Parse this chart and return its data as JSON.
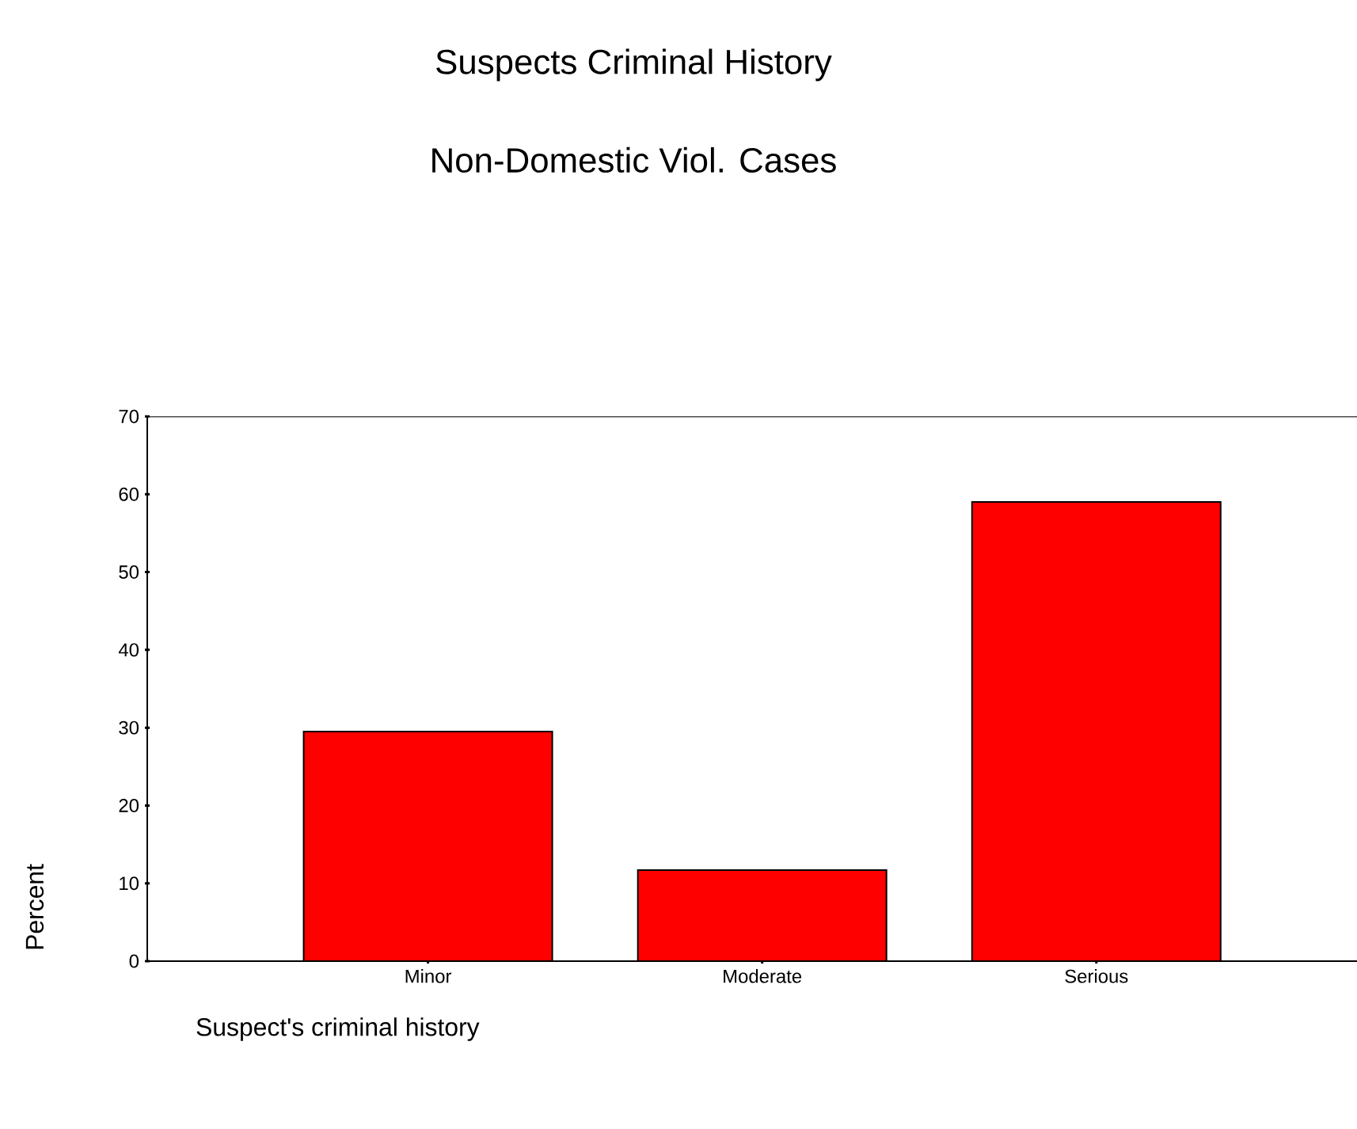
{
  "chart_data": {
    "type": "bar",
    "title": "Suspects Criminal History",
    "subtitle": "Non-Domestic Viol. Cases",
    "categories": [
      "Minor",
      "Moderate",
      "Serious"
    ],
    "values": [
      29.5,
      11.7,
      59.0
    ],
    "color": "#ff0000",
    "xlabel": "Suspect's criminal history",
    "ylabel": "Percent",
    "ylim": [
      0,
      70
    ],
    "yticks": [
      0,
      10,
      20,
      30,
      40,
      50,
      60,
      70
    ]
  }
}
